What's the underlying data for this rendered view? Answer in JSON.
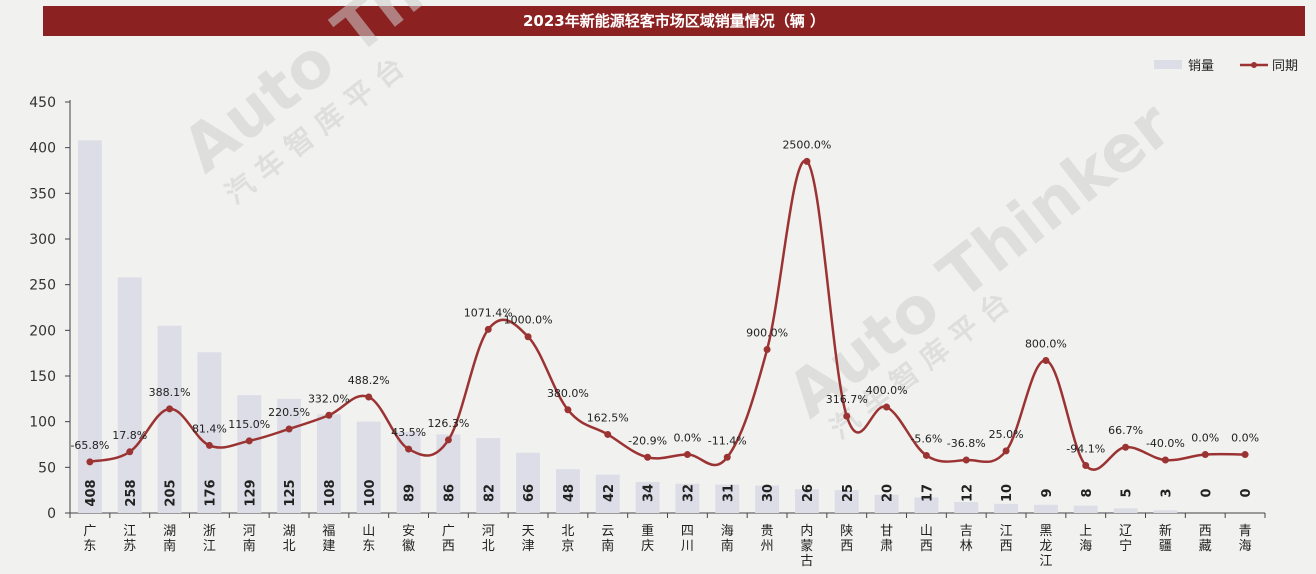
{
  "chart_data": {
    "type": "bar",
    "title": "2023年新能源轻客市场区域销量情况（辆 ）",
    "categories": [
      "广东",
      "江苏",
      "湖南",
      "浙江",
      "河南",
      "湖北",
      "福建",
      "山东",
      "安徽",
      "广西",
      "河北",
      "天津",
      "北京",
      "云南",
      "重庆",
      "四川",
      "海南",
      "贵州",
      "内蒙古",
      "陕西",
      "甘肃",
      "山西",
      "吉林",
      "江西",
      "黑龙江",
      "上海",
      "辽宁",
      "新疆",
      "西藏",
      "青海"
    ],
    "ylim": [
      0,
      450
    ],
    "yticks": [
      0,
      50,
      100,
      150,
      200,
      250,
      300,
      350,
      400,
      450
    ],
    "grid": false,
    "legend_position": "top-right",
    "series": [
      {
        "name": "销量",
        "type": "bar",
        "color": "#dcdde6",
        "values": [
          408,
          258,
          205,
          176,
          129,
          125,
          108,
          100,
          89,
          86,
          82,
          66,
          48,
          42,
          34,
          32,
          31,
          30,
          26,
          25,
          20,
          17,
          12,
          10,
          9,
          8,
          5,
          3,
          0,
          0
        ]
      },
      {
        "name": "同期",
        "type": "line",
        "color": "#9b3333",
        "labels": [
          "-65.8%",
          "17.8%",
          "388.1%",
          "81.4%",
          "115.0%",
          "220.5%",
          "332.0%",
          "488.2%",
          "43.5%",
          "126.3%",
          "1071.4%",
          "1000.0%",
          "380.0%",
          "162.5%",
          "-20.9%",
          "0.0%",
          "-11.4%",
          "900.0%",
          "2500.0%",
          "316.7%",
          "400.0%",
          "-5.6%",
          "-36.8%",
          "25.0%",
          "800.0%",
          "-94.1%",
          "66.7%",
          "-40.0%",
          "0.0%",
          "0.0%"
        ],
        "plot_values": [
          56,
          67,
          114,
          74,
          79,
          92,
          107,
          127,
          70,
          80,
          201,
          193,
          113,
          86,
          61,
          64,
          61,
          179,
          385,
          106,
          116,
          63,
          58,
          68,
          167,
          52,
          72,
          58,
          64,
          64
        ]
      }
    ]
  },
  "watermark": {
    "brand": "Auto Thinker",
    "subtitle": "汽 车 智 库 平 台"
  }
}
